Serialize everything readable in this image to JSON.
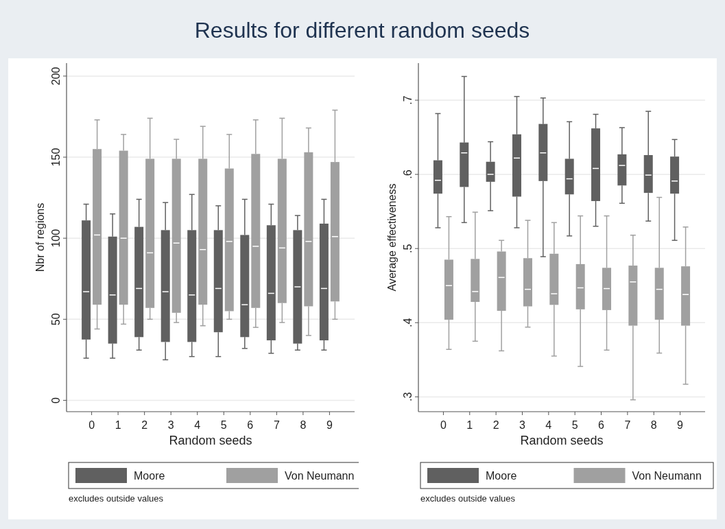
{
  "chart_data": [
    {
      "type": "box",
      "title": "Results for different random seeds",
      "xlabel": "Random seeds",
      "ylabel": "Nbr of regions",
      "categories": [
        "0",
        "1",
        "2",
        "3",
        "4",
        "5",
        "6",
        "7",
        "8",
        "9"
      ],
      "ylim": [
        -7,
        208
      ],
      "yticks": [
        0,
        50,
        100,
        150,
        200
      ],
      "grid": "y",
      "legend": "bottom",
      "annotations": [
        "excludes outside values"
      ],
      "series": [
        {
          "name": "Moore",
          "color": "#606060",
          "boxes": [
            {
              "low": 26,
              "q1": 37.5,
              "median": 67,
              "q3": 111,
              "high": 121
            },
            {
              "low": 26,
              "q1": 35,
              "median": 65,
              "q3": 101,
              "high": 115
            },
            {
              "low": 31,
              "q1": 39,
              "median": 69,
              "q3": 107,
              "high": 124
            },
            {
              "low": 25,
              "q1": 36,
              "median": 67,
              "q3": 105,
              "high": 122
            },
            {
              "low": 27,
              "q1": 36,
              "median": 65,
              "q3": 105,
              "high": 127
            },
            {
              "low": 27,
              "q1": 42,
              "median": 69,
              "q3": 105,
              "high": 120
            },
            {
              "low": 32,
              "q1": 39,
              "median": 59,
              "q3": 102,
              "high": 124
            },
            {
              "low": 29,
              "q1": 37,
              "median": 66,
              "q3": 108,
              "high": 121
            },
            {
              "low": 31,
              "q1": 35,
              "median": 70,
              "q3": 105,
              "high": 114
            },
            {
              "low": 31,
              "q1": 37,
              "median": 69,
              "q3": 109,
              "high": 124
            }
          ]
        },
        {
          "name": "Von Neumann",
          "color": "#a0a0a0",
          "boxes": [
            {
              "low": 44,
              "q1": 59,
              "median": 102,
              "q3": 155,
              "high": 173
            },
            {
              "low": 47,
              "q1": 59,
              "median": 100,
              "q3": 154,
              "high": 164
            },
            {
              "low": 50,
              "q1": 57,
              "median": 91,
              "q3": 149,
              "high": 174
            },
            {
              "low": 48,
              "q1": 54,
              "median": 97,
              "q3": 149,
              "high": 161
            },
            {
              "low": 46,
              "q1": 59,
              "median": 93,
              "q3": 149,
              "high": 169
            },
            {
              "low": 50,
              "q1": 55,
              "median": 98,
              "q3": 143,
              "high": 164
            },
            {
              "low": 45,
              "q1": 57,
              "median": 95,
              "q3": 152,
              "high": 173
            },
            {
              "low": 48,
              "q1": 60,
              "median": 94,
              "q3": 149,
              "high": 174
            },
            {
              "low": 40,
              "q1": 58,
              "median": 98,
              "q3": 153,
              "high": 168
            },
            {
              "low": 50,
              "q1": 61,
              "median": 101,
              "q3": 147,
              "high": 179
            }
          ]
        }
      ]
    },
    {
      "type": "box",
      "xlabel": "Random seeds",
      "ylabel": "Average effectiveness",
      "categories": [
        "0",
        "1",
        "2",
        "3",
        "4",
        "5",
        "6",
        "7",
        "8",
        "9"
      ],
      "ylim": [
        0.28,
        0.75
      ],
      "yticks": [
        {
          "value": 0.3,
          "label": ".3"
        },
        {
          "value": 0.4,
          "label": ".4"
        },
        {
          "value": 0.5,
          "label": ".5"
        },
        {
          "value": 0.6,
          "label": ".6"
        },
        {
          "value": 0.7,
          "label": ".7"
        }
      ],
      "grid": "y",
      "legend": "bottom",
      "annotations": [
        "excludes outside values"
      ],
      "series": [
        {
          "name": "Moore",
          "color": "#606060",
          "boxes": [
            {
              "low": 0.528,
              "q1": 0.574,
              "median": 0.592,
              "q3": 0.619,
              "high": 0.682
            },
            {
              "low": 0.535,
              "q1": 0.583,
              "median": 0.629,
              "q3": 0.643,
              "high": 0.732
            },
            {
              "low": 0.551,
              "q1": 0.59,
              "median": 0.6,
              "q3": 0.617,
              "high": 0.644
            },
            {
              "low": 0.528,
              "q1": 0.57,
              "median": 0.622,
              "q3": 0.654,
              "high": 0.705
            },
            {
              "low": 0.489,
              "q1": 0.591,
              "median": 0.629,
              "q3": 0.668,
              "high": 0.703
            },
            {
              "low": 0.517,
              "q1": 0.573,
              "median": 0.594,
              "q3": 0.621,
              "high": 0.671
            },
            {
              "low": 0.53,
              "q1": 0.564,
              "median": 0.608,
              "q3": 0.662,
              "high": 0.681
            },
            {
              "low": 0.561,
              "q1": 0.585,
              "median": 0.612,
              "q3": 0.627,
              "high": 0.663
            },
            {
              "low": 0.537,
              "q1": 0.575,
              "median": 0.599,
              "q3": 0.626,
              "high": 0.685
            },
            {
              "low": 0.511,
              "q1": 0.574,
              "median": 0.591,
              "q3": 0.624,
              "high": 0.647
            }
          ]
        },
        {
          "name": "Von Neumann",
          "color": "#a0a0a0",
          "boxes": [
            {
              "low": 0.364,
              "q1": 0.404,
              "median": 0.45,
              "q3": 0.485,
              "high": 0.543
            },
            {
              "low": 0.375,
              "q1": 0.428,
              "median": 0.442,
              "q3": 0.486,
              "high": 0.549
            },
            {
              "low": 0.362,
              "q1": 0.416,
              "median": 0.461,
              "q3": 0.496,
              "high": 0.511
            },
            {
              "low": 0.394,
              "q1": 0.422,
              "median": 0.445,
              "q3": 0.487,
              "high": 0.538
            },
            {
              "low": 0.355,
              "q1": 0.424,
              "median": 0.439,
              "q3": 0.493,
              "high": 0.535
            },
            {
              "low": 0.341,
              "q1": 0.418,
              "median": 0.447,
              "q3": 0.479,
              "high": 0.544
            },
            {
              "low": 0.363,
              "q1": 0.417,
              "median": 0.446,
              "q3": 0.474,
              "high": 0.544
            },
            {
              "low": 0.296,
              "q1": 0.396,
              "median": 0.455,
              "q3": 0.477,
              "high": 0.518
            },
            {
              "low": 0.359,
              "q1": 0.404,
              "median": 0.445,
              "q3": 0.474,
              "high": 0.569
            },
            {
              "low": 0.317,
              "q1": 0.396,
              "median": 0.438,
              "q3": 0.476,
              "high": 0.529
            }
          ]
        }
      ]
    }
  ]
}
